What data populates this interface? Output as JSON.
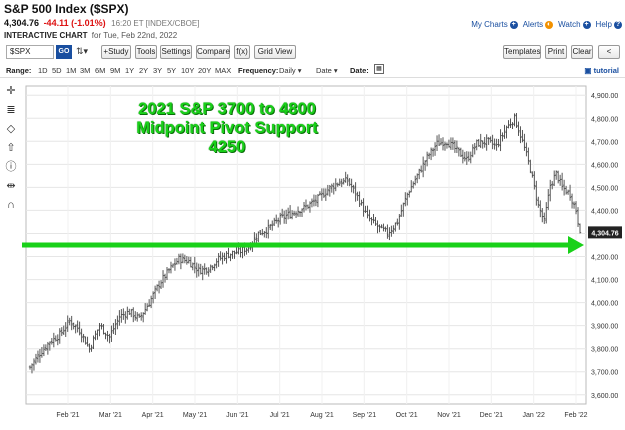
{
  "header": {
    "title": "S&P 500 Index ($SPX)",
    "price": "4,304.76",
    "change": "-44.11 (-1.01%)",
    "time": "16:20 ET [INDEX/CBOE]",
    "chart_label": "INTERACTIVE CHART",
    "chart_date": "for Tue, Feb 22nd, 2022"
  },
  "toplinks": {
    "my_charts": "My Charts",
    "alerts": "Alerts",
    "watch": "Watch",
    "help": "Help"
  },
  "toolbar": {
    "symbol": "$SPX",
    "go": "GO",
    "study": "+Study",
    "tools": "Tools",
    "settings": "Settings",
    "compare": "Compare",
    "fx": "f(x)",
    "grid_view": "Grid View",
    "templates": "Templates",
    "print": "Print",
    "clear": "Clear"
  },
  "rangebar": {
    "range_label": "Range:",
    "ranges": [
      "1D",
      "5D",
      "1M",
      "3M",
      "6M",
      "9M",
      "1Y",
      "2Y",
      "3Y",
      "5Y",
      "10Y",
      "20Y",
      "MAX"
    ],
    "frequency_label": "Frequency:",
    "frequency_value": "Daily",
    "date_value": "Date",
    "date_label": "Date:",
    "tutorial": "tutorial"
  },
  "icons": [
    "crosshair-icon",
    "fib-icon",
    "shape-icon",
    "arrow-icon",
    "info-icon",
    "measure-icon",
    "magnet-icon"
  ],
  "annotation": {
    "lines": [
      "2021 S&P 3700 to 4800",
      "Midpoint Pivot Support",
      "4250"
    ],
    "color": "#19d119"
  },
  "colors": {
    "accent": "#1a4fa0",
    "negative": "#dd1111",
    "annotation_green": "#19d119",
    "bars": "#444444"
  },
  "chart_data": {
    "type": "ohlc",
    "ylim": [
      3560,
      4940
    ],
    "y_ticks": [
      3600,
      3700,
      3800,
      3900,
      4000,
      4100,
      4200,
      4300,
      4400,
      4500,
      4600,
      4700,
      4800,
      4900
    ],
    "y_tick_labels": [
      "3,600.00",
      "3,700.00",
      "3,800.00",
      "3,900.00",
      "4,000.00",
      "4,100.00",
      "4,200.00",
      "4,300.00",
      "4,400.00",
      "4,500.00",
      "4,600.00",
      "4,700.00",
      "4,800.00",
      "4,900.00"
    ],
    "x_labels": [
      "Feb '21",
      "Mar '21",
      "Apr '21",
      "May '21",
      "Jun '21",
      "Jul '21",
      "Aug '21",
      "Sep '21",
      "Oct '21",
      "Nov '21",
      "Dec '21",
      "Jan '22",
      "Feb '22"
    ],
    "last_price_label": "4,304.76",
    "last_value": 4304.76,
    "support_level": 4250,
    "anchor_closes": [
      [
        0,
        3720
      ],
      [
        5,
        3780
      ],
      [
        10,
        3830
      ],
      [
        15,
        3860
      ],
      [
        20,
        3920
      ],
      [
        25,
        3880
      ],
      [
        30,
        3800
      ],
      [
        35,
        3900
      ],
      [
        40,
        3850
      ],
      [
        45,
        3940
      ],
      [
        50,
        3960
      ],
      [
        55,
        3930
      ],
      [
        60,
        4000
      ],
      [
        65,
        4080
      ],
      [
        70,
        4140
      ],
      [
        75,
        4190
      ],
      [
        80,
        4180
      ],
      [
        85,
        4140
      ],
      [
        90,
        4150
      ],
      [
        95,
        4190
      ],
      [
        100,
        4210
      ],
      [
        105,
        4220
      ],
      [
        110,
        4240
      ],
      [
        115,
        4300
      ],
      [
        120,
        4320
      ],
      [
        125,
        4360
      ],
      [
        130,
        4380
      ],
      [
        135,
        4400
      ],
      [
        140,
        4420
      ],
      [
        145,
        4450
      ],
      [
        150,
        4490
      ],
      [
        155,
        4520
      ],
      [
        160,
        4530
      ],
      [
        165,
        4460
      ],
      [
        170,
        4370
      ],
      [
        175,
        4330
      ],
      [
        180,
        4300
      ],
      [
        185,
        4350
      ],
      [
        190,
        4470
      ],
      [
        195,
        4550
      ],
      [
        200,
        4630
      ],
      [
        205,
        4690
      ],
      [
        210,
        4700
      ],
      [
        215,
        4660
      ],
      [
        220,
        4620
      ],
      [
        225,
        4690
      ],
      [
        230,
        4700
      ],
      [
        235,
        4680
      ],
      [
        240,
        4760
      ],
      [
        244,
        4800
      ],
      [
        248,
        4700
      ],
      [
        252,
        4580
      ],
      [
        256,
        4420
      ],
      [
        259,
        4350
      ],
      [
        262,
        4510
      ],
      [
        265,
        4560
      ],
      [
        268,
        4500
      ],
      [
        272,
        4470
      ],
      [
        275,
        4400
      ],
      [
        277,
        4304.76
      ]
    ]
  }
}
